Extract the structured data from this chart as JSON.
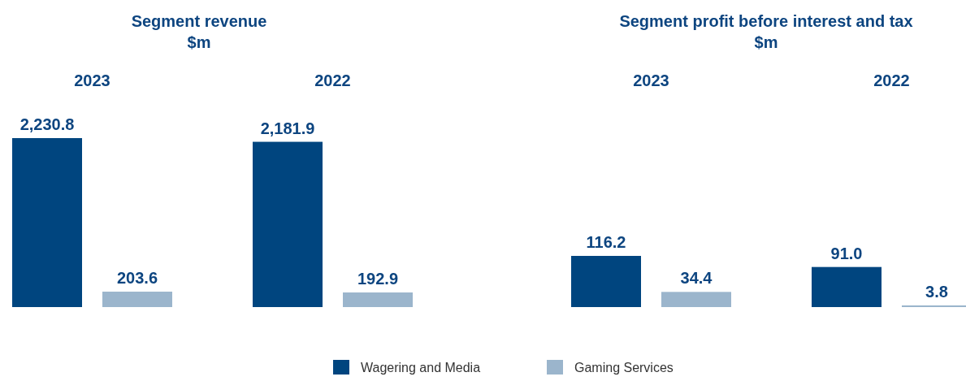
{
  "chart_data": [
    {
      "type": "bar",
      "title": "Segment revenue",
      "subtitle": "$m",
      "categories": [
        "2023",
        "2022"
      ],
      "series": [
        {
          "name": "Wagering and Media",
          "color": "#00457f",
          "values": [
            2230.8,
            2181.9
          ],
          "value_labels": [
            "2,230.8",
            "2,181.9"
          ]
        },
        {
          "name": "Gaming Services",
          "color": "#9bb5cc",
          "values": [
            203.6,
            192.9
          ],
          "value_labels": [
            "203.6",
            "192.9"
          ]
        }
      ],
      "legend": "bottom"
    },
    {
      "type": "bar",
      "title": "Segment profit before interest and tax",
      "subtitle": "$m",
      "categories": [
        "2023",
        "2022"
      ],
      "series": [
        {
          "color": "#00457f",
          "values": [
            116.2,
            91.0
          ],
          "value_labels": [
            "116.2",
            "91.0"
          ]
        },
        {
          "color": "#9bb5cc",
          "values": [
            34.4,
            3.8
          ],
          "value_labels": [
            "34.4",
            "3.8"
          ]
        }
      ]
    }
  ]
}
